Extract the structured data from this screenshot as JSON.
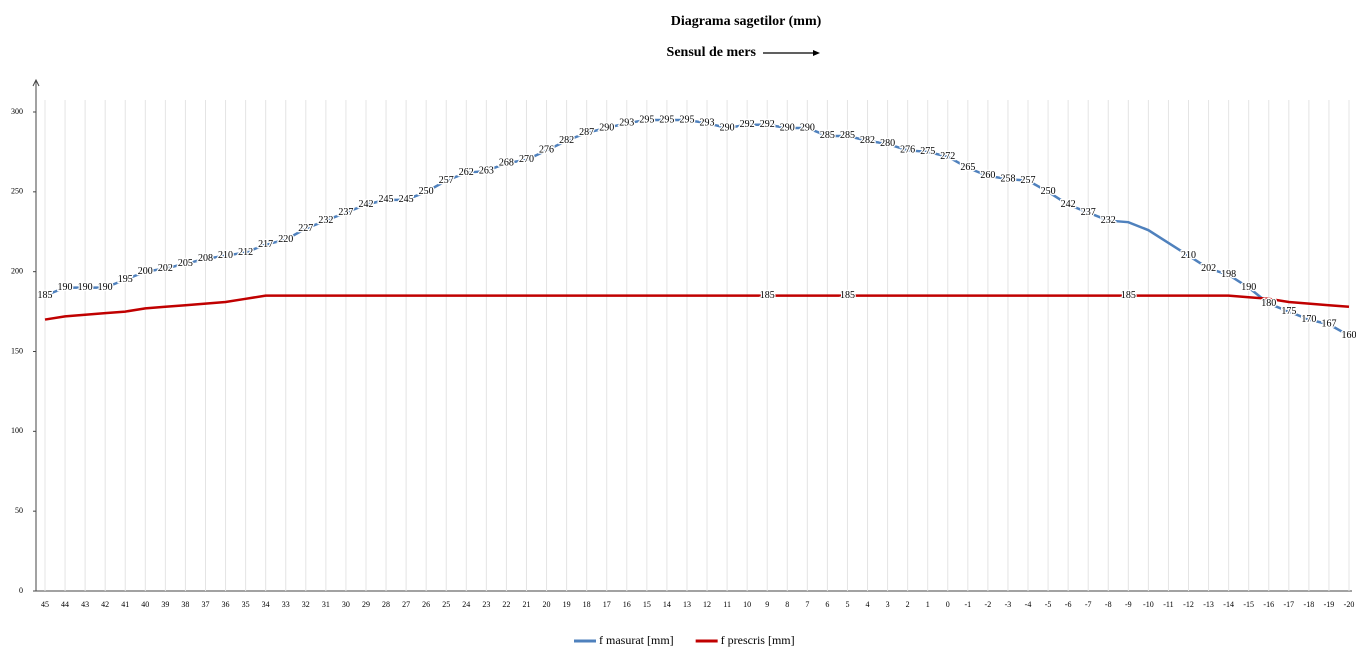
{
  "chart_data": {
    "type": "line",
    "title": "Diagrama sagetilor (mm)",
    "subtitle": "Sensul de mers",
    "categories": [
      45,
      44,
      43,
      42,
      41,
      40,
      39,
      38,
      37,
      36,
      35,
      34,
      33,
      32,
      31,
      30,
      29,
      28,
      27,
      26,
      25,
      24,
      23,
      22,
      21,
      20,
      19,
      18,
      17,
      16,
      15,
      14,
      13,
      12,
      11,
      10,
      9,
      8,
      7,
      6,
      5,
      4,
      3,
      2,
      1,
      0,
      -1,
      -2,
      -3,
      -4,
      -5,
      -6,
      -7,
      -8,
      -9,
      -10,
      -11,
      -12,
      -13,
      -14,
      -15,
      -16,
      -17,
      -18,
      -19,
      -20
    ],
    "series": [
      {
        "name": "f masurat [mm]",
        "color": "#4f81bd",
        "values": [
          185,
          190,
          190,
          190,
          195,
          200,
          202,
          205,
          208,
          210,
          212,
          217,
          220,
          227,
          232,
          237,
          242,
          245,
          245,
          250,
          257,
          262,
          263,
          268,
          270,
          276,
          282,
          287,
          290,
          293,
          295,
          295,
          295,
          293,
          290,
          292,
          292,
          290,
          290,
          285,
          285,
          282,
          280,
          276,
          275,
          272,
          265,
          260,
          258,
          257,
          250,
          242,
          237,
          232,
          231,
          226,
          218,
          210,
          202,
          198,
          190,
          180,
          175,
          170,
          167,
          160
        ],
        "value_labels": [
          185,
          190,
          190,
          190,
          195,
          200,
          202,
          205,
          208,
          210,
          212,
          217,
          220,
          227,
          232,
          237,
          242,
          245,
          245,
          250,
          257,
          262,
          263,
          268,
          270,
          276,
          282,
          287,
          290,
          293,
          295,
          295,
          295,
          293,
          290,
          292,
          292,
          290,
          290,
          285,
          285,
          282,
          280,
          276,
          275,
          272,
          265,
          260,
          258,
          257,
          250,
          242,
          237,
          232,
          null,
          null,
          null,
          210,
          202,
          198,
          190,
          180,
          175,
          170,
          167,
          160
        ]
      },
      {
        "name": "f prescris [mm]",
        "color": "#c00000",
        "values": [
          170,
          172,
          173,
          174,
          175,
          177,
          178,
          179,
          180,
          181,
          183,
          185,
          185,
          185,
          185,
          185,
          185,
          185,
          185,
          185,
          185,
          185,
          185,
          185,
          185,
          185,
          185,
          185,
          185,
          185,
          185,
          185,
          185,
          185,
          185,
          185,
          185,
          185,
          185,
          185,
          185,
          185,
          185,
          185,
          185,
          185,
          185,
          185,
          185,
          185,
          185,
          185,
          185,
          185,
          185,
          185,
          185,
          185,
          185,
          185,
          184,
          183,
          181,
          180,
          179,
          178
        ],
        "value_labels": [
          null,
          null,
          null,
          null,
          null,
          null,
          null,
          null,
          null,
          null,
          null,
          null,
          null,
          null,
          null,
          null,
          null,
          null,
          null,
          null,
          null,
          null,
          null,
          null,
          null,
          null,
          null,
          null,
          null,
          null,
          null,
          null,
          null,
          null,
          null,
          null,
          185,
          null,
          null,
          null,
          185,
          null,
          null,
          null,
          null,
          null,
          null,
          null,
          null,
          null,
          null,
          null,
          null,
          null,
          185,
          null,
          null,
          null,
          null,
          null,
          null,
          null,
          null,
          null,
          null,
          null
        ]
      }
    ],
    "ylim": [
      0,
      300
    ],
    "yticks": [
      0,
      50,
      100,
      150,
      200,
      250,
      300
    ],
    "grid": "vertical",
    "legend": "bottom"
  }
}
